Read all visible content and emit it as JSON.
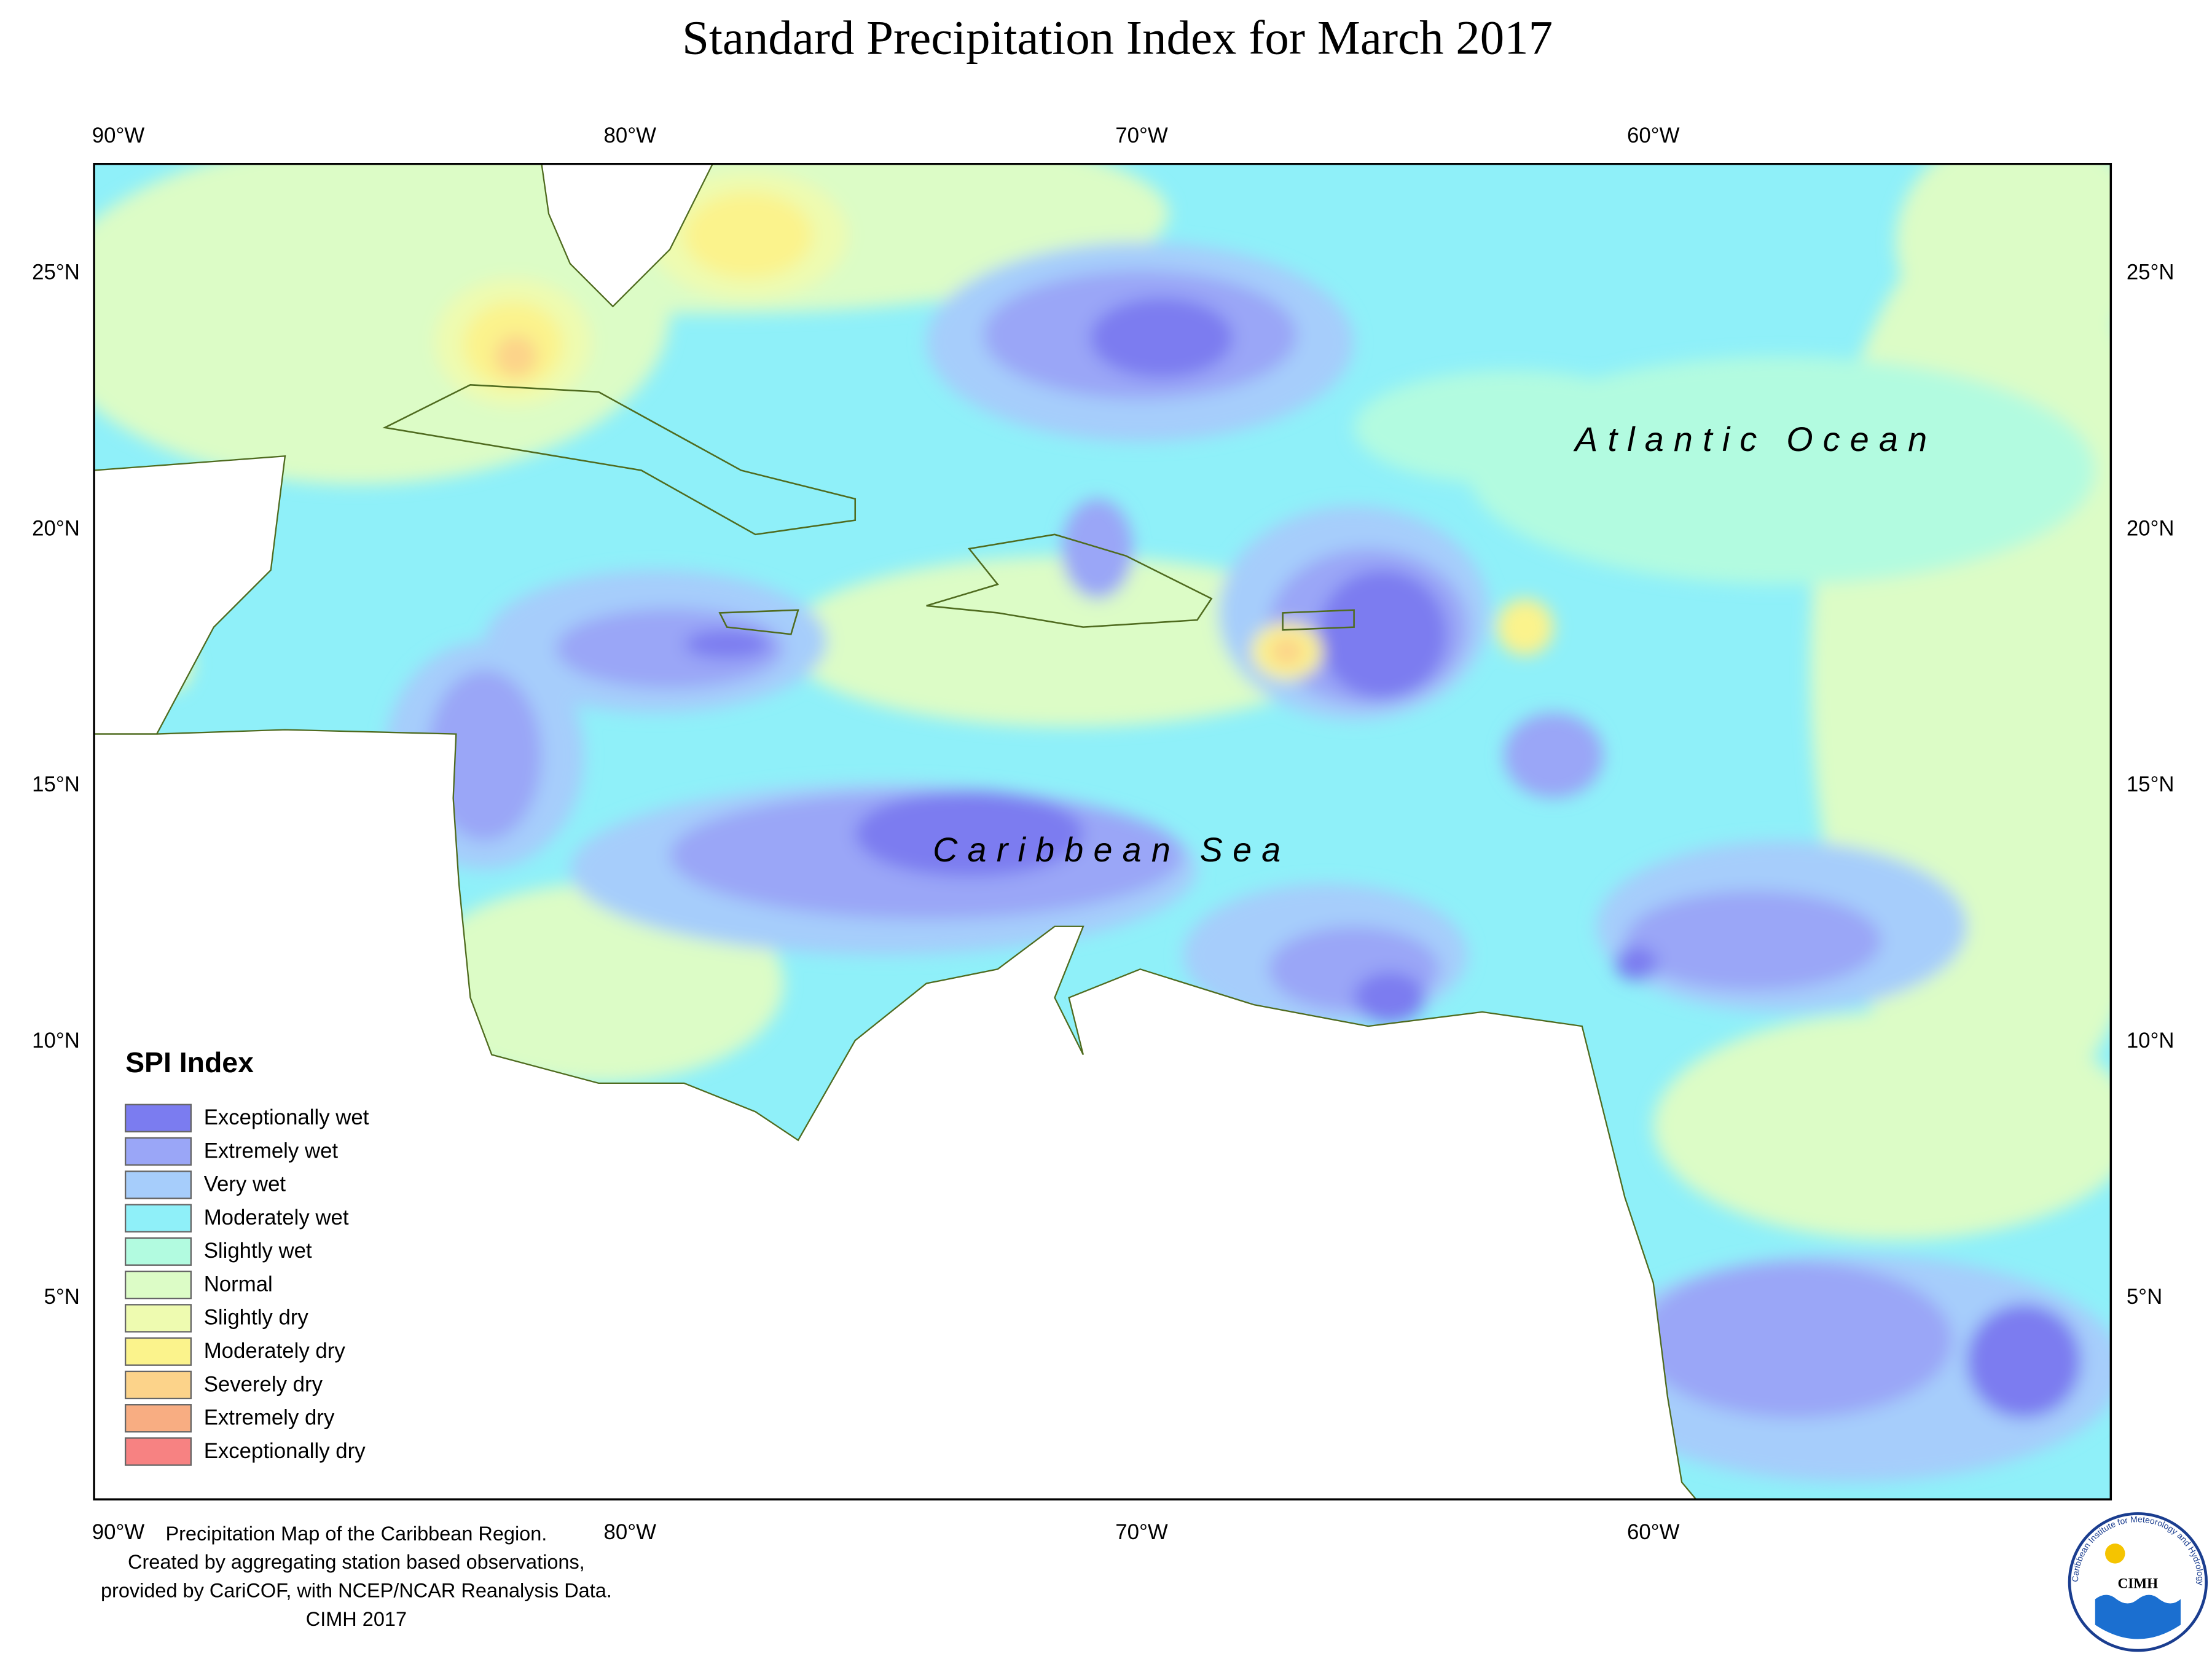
{
  "title": "Standard Precipitation Index for March 2017",
  "longitude_labels": [
    "90°W",
    "80°W",
    "70°W",
    "60°W"
  ],
  "latitude_labels": [
    "25°N",
    "20°N",
    "15°N",
    "10°N",
    "5°N"
  ],
  "map_labels": [
    "Atlantic Ocean",
    "Caribbean Sea"
  ],
  "legend": {
    "title": "SPI Index",
    "items": [
      {
        "label": "Exceptionally wet",
        "color": "#7b7cf0"
      },
      {
        "label": "Extremely wet",
        "color": "#9aa6f7"
      },
      {
        "label": "Very wet",
        "color": "#a6cdfb"
      },
      {
        "label": "Moderately wet",
        "color": "#8ff0f9"
      },
      {
        "label": "Slightly wet",
        "color": "#b2fbe0"
      },
      {
        "label": "Normal",
        "color": "#dcfcc6"
      },
      {
        "label": "Slightly dry",
        "color": "#eefbb0"
      },
      {
        "label": "Moderately dry",
        "color": "#fbf38c"
      },
      {
        "label": "Severely dry",
        "color": "#fcd38a"
      },
      {
        "label": "Extremely dry",
        "color": "#f8ad82"
      },
      {
        "label": "Exceptionally dry",
        "color": "#f78282"
      }
    ]
  },
  "footer": [
    "Precipitation Map of the Caribbean Region.",
    "Created by aggregating station based observations,",
    "provided by CariCOF, with NCEP/NCAR Reanalysis Data.",
    "CIMH 2017"
  ],
  "logo": {
    "text": "CIMH",
    "ring_text": "Caribbean Institute for Meteorology and Hydrology"
  }
}
